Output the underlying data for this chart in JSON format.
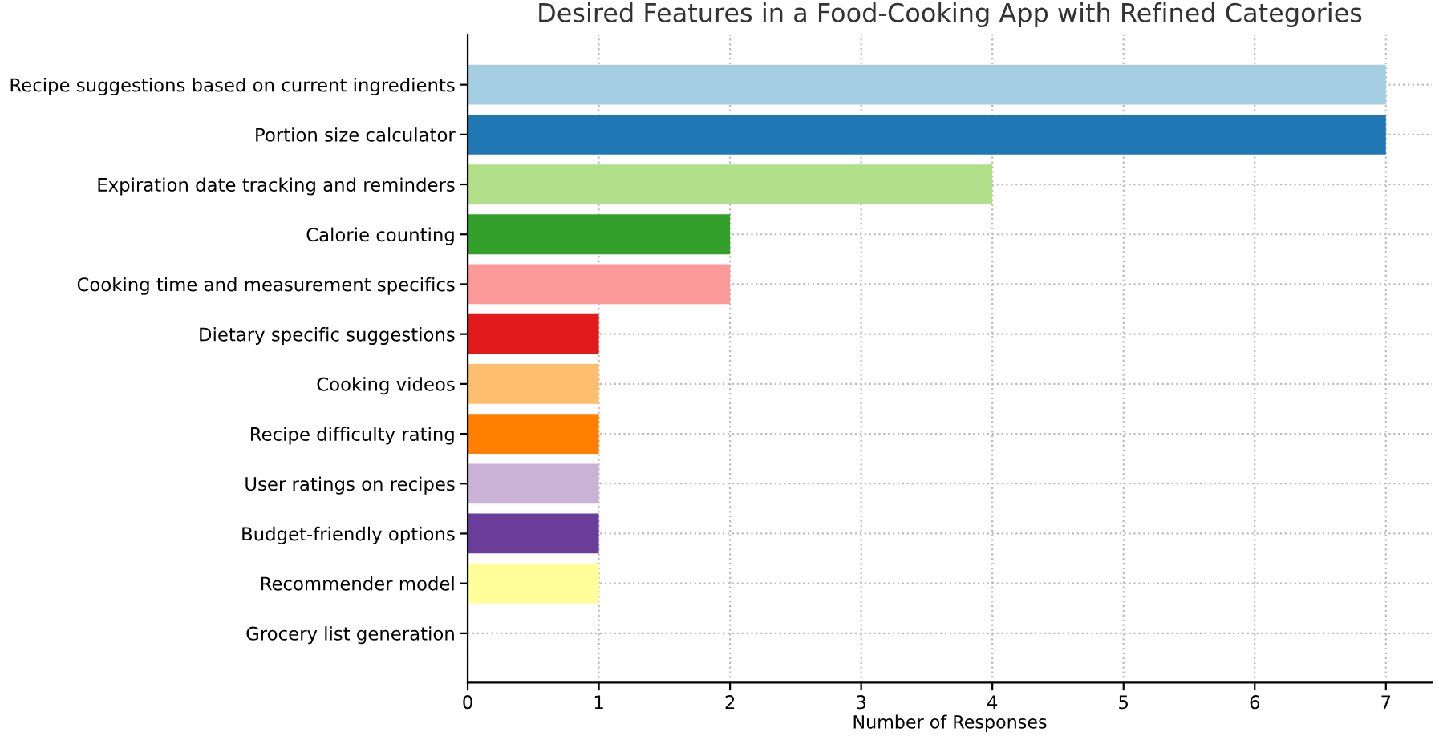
{
  "chart_data": {
    "type": "bar",
    "orientation": "horizontal",
    "title": "Desired Features in a Food-Cooking App with Refined Categories",
    "xlabel": "Number of Responses",
    "categories": [
      "Recipe suggestions based on current ingredients",
      "Portion size calculator",
      "Expiration date tracking and reminders",
      "Calorie counting",
      "Cooking time and measurement specifics",
      "Dietary specific suggestions",
      "Cooking videos",
      "Recipe difficulty rating",
      "User ratings on recipes",
      "Budget-friendly options",
      "Recommender model",
      "Grocery list generation"
    ],
    "values": [
      7,
      7,
      4,
      2,
      2,
      1,
      1,
      1,
      1,
      1,
      1,
      0
    ],
    "colors": [
      "#a6cee3",
      "#1f78b4",
      "#b2df8a",
      "#33a02c",
      "#fb9a99",
      "#e31a1c",
      "#fdbf6f",
      "#ff7f00",
      "#cab2d6",
      "#6a3d9a",
      "#ffff99",
      "#b15928"
    ],
    "xlim": [
      0,
      7.35
    ],
    "xticks": [
      0,
      1,
      2,
      3,
      4,
      5,
      6,
      7
    ],
    "grid": true
  }
}
